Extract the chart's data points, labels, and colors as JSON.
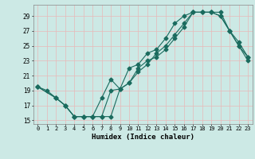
{
  "xlabel": "Humidex (Indice chaleur)",
  "bg_color": "#cce9e5",
  "grid_color": "#b0d8d4",
  "line_color": "#1a6b5e",
  "xlim": [
    -0.5,
    23.5
  ],
  "ylim": [
    14.5,
    30.5
  ],
  "xticks": [
    0,
    1,
    2,
    3,
    4,
    5,
    6,
    7,
    8,
    9,
    10,
    11,
    12,
    13,
    14,
    15,
    16,
    17,
    18,
    19,
    20,
    21,
    22,
    23
  ],
  "yticks": [
    15,
    17,
    19,
    21,
    23,
    25,
    27,
    29
  ],
  "line1_x": [
    0,
    2,
    3,
    4,
    5,
    6,
    7,
    8,
    9,
    10,
    11,
    12,
    13,
    14,
    15,
    16,
    17,
    18,
    19,
    20,
    21,
    22,
    23
  ],
  "line1_y": [
    19.5,
    18.0,
    17.0,
    15.5,
    15.5,
    15.5,
    15.5,
    19.0,
    19.2,
    20.0,
    22.0,
    23.0,
    23.5,
    24.5,
    26.0,
    27.5,
    29.5,
    29.5,
    29.5,
    29.5,
    27.0,
    25.5,
    23.5
  ],
  "line2_x": [
    0,
    2,
    3,
    4,
    5,
    6,
    7,
    8,
    9,
    10,
    11,
    12,
    13,
    14,
    15,
    16,
    17,
    18,
    19,
    20,
    21,
    22,
    23
  ],
  "line2_y": [
    19.5,
    18.0,
    17.0,
    15.5,
    15.5,
    15.5,
    18.0,
    20.5,
    19.2,
    22.0,
    22.5,
    24.0,
    24.5,
    26.0,
    28.0,
    29.0,
    29.5,
    29.5,
    29.5,
    29.0,
    27.0,
    25.0,
    23.0
  ],
  "line3_x": [
    0,
    1,
    2,
    3,
    4,
    5,
    6,
    7,
    8,
    9,
    10,
    11,
    12,
    13,
    14,
    15,
    16,
    17,
    18,
    19,
    20,
    21,
    22,
    23
  ],
  "line3_y": [
    19.5,
    19.0,
    18.0,
    17.0,
    15.5,
    15.5,
    15.5,
    15.5,
    15.5,
    19.2,
    20.0,
    21.5,
    22.5,
    24.0,
    25.0,
    26.5,
    28.0,
    29.5,
    29.5,
    29.5,
    29.0,
    27.0,
    25.0,
    23.5
  ]
}
